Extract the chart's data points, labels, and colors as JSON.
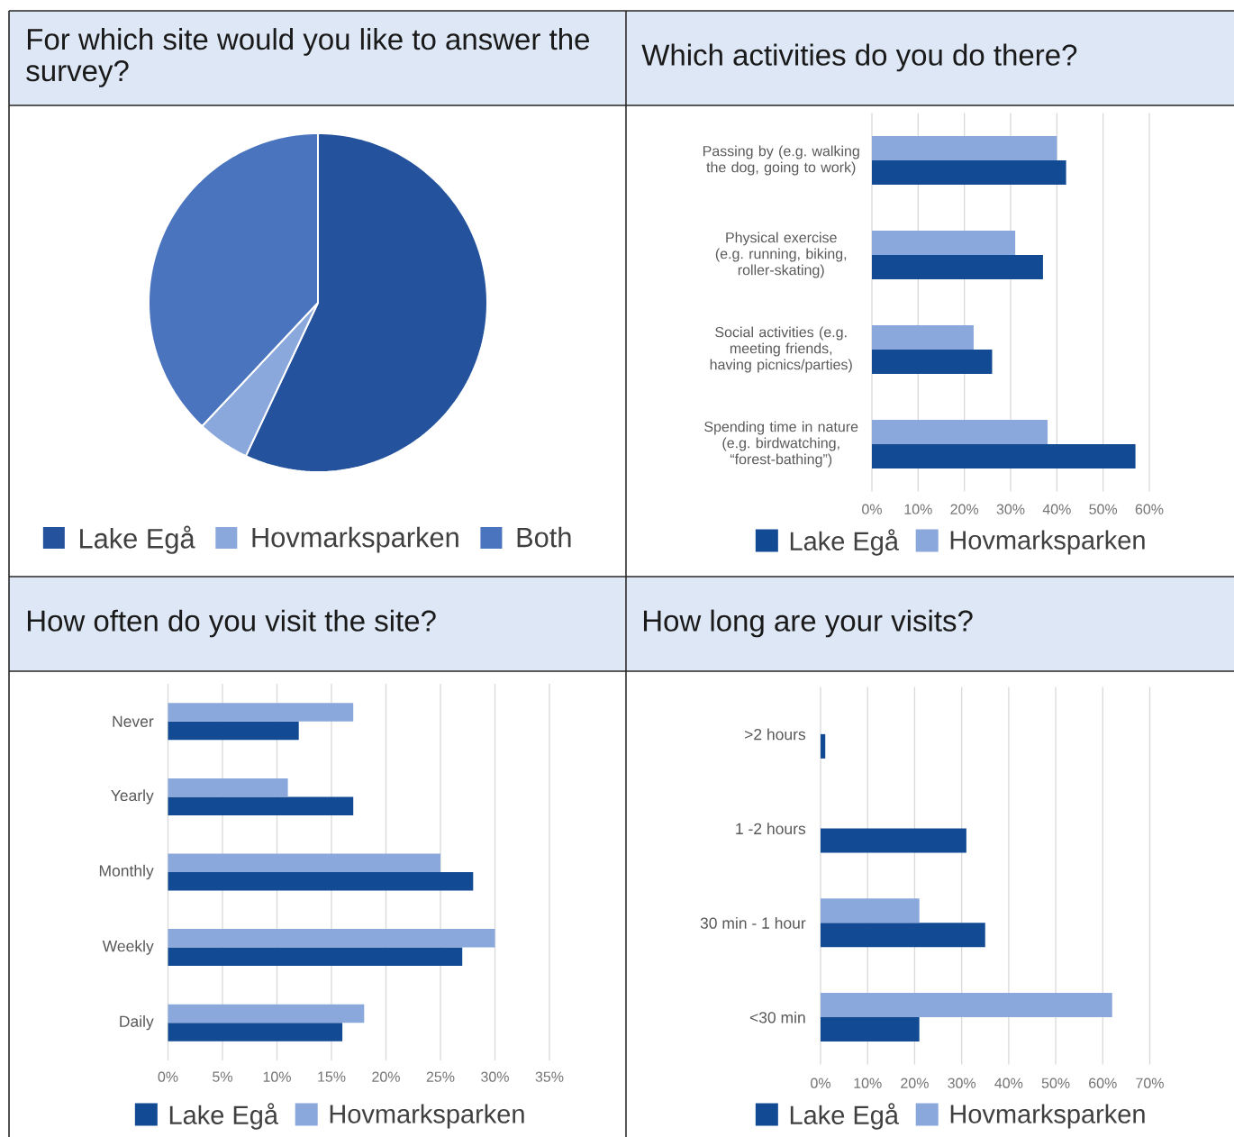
{
  "chart_data": [
    {
      "type": "pie",
      "title": "For which site would you like to answer the survey?",
      "categories": [
        "Lake Egå",
        "Hovmarksparken",
        "Both"
      ],
      "values": [
        57,
        5,
        38
      ],
      "colors": [
        "#24529c",
        "#8aa8dc",
        "#4a74bd"
      ],
      "legend": "bottom"
    },
    {
      "type": "bar",
      "title": "Which activities do you do there?",
      "orientation": "horizontal",
      "categories": [
        "Passing by (e.g. walking the dog, going to work)",
        "Physical exercise (e.g. running, biking, roller-skating)",
        "Social activities (e.g. meeting friends, having picnics/parties)",
        "Spending time in nature (e.g. birdwatching, “forest-bathing”)"
      ],
      "series": [
        {
          "name": "Lake Egå",
          "color": "#124b94",
          "values": [
            42,
            37,
            26,
            57
          ]
        },
        {
          "name": "Hovmarksparken",
          "color": "#8aa8dc",
          "values": [
            40,
            31,
            22,
            38
          ]
        }
      ],
      "xlim": [
        0,
        60
      ],
      "xticks": [
        {
          "value": 0,
          "label": "0%"
        },
        {
          "value": 10,
          "label": "10%"
        },
        {
          "value": 20,
          "label": "20%"
        },
        {
          "value": 30,
          "label": "30%"
        },
        {
          "value": 40,
          "label": "40%"
        },
        {
          "value": 50,
          "label": "50%"
        },
        {
          "value": 60,
          "label": "60%"
        }
      ],
      "grid": "x",
      "legend": "bottom"
    },
    {
      "type": "bar",
      "title": "How often do you visit the site?",
      "orientation": "horizontal",
      "categories": [
        "Never",
        "Yearly",
        "Monthly",
        "Weekly",
        "Daily"
      ],
      "series": [
        {
          "name": "Lake Egå",
          "color": "#124b94",
          "values": [
            12,
            17,
            28,
            27,
            16
          ]
        },
        {
          "name": "Hovmarksparken",
          "color": "#8aa8dc",
          "values": [
            17,
            11,
            25,
            30,
            18
          ]
        }
      ],
      "xlim": [
        0,
        35
      ],
      "xticks": [
        {
          "value": 0,
          "label": "0%"
        },
        {
          "value": 5,
          "label": "5%"
        },
        {
          "value": 10,
          "label": "10%"
        },
        {
          "value": 15,
          "label": "15%"
        },
        {
          "value": 20,
          "label": "20%"
        },
        {
          "value": 25,
          "label": "25%"
        },
        {
          "value": 30,
          "label": "30%"
        },
        {
          "value": 35,
          "label": "35%"
        }
      ],
      "grid": "x",
      "legend": "bottom"
    },
    {
      "type": "bar",
      "title": "How long are your visits?",
      "orientation": "horizontal",
      "categories": [
        ">2 hours",
        "1 -2 hours",
        "30 min - 1 hour",
        "<30 min"
      ],
      "series": [
        {
          "name": "Lake Egå",
          "color": "#124b94",
          "values": [
            1,
            31,
            35,
            21
          ]
        },
        {
          "name": "Hovmarksparken",
          "color": "#8aa8dc",
          "values": [
            0,
            0,
            21,
            62
          ]
        }
      ],
      "xlim": [
        0,
        70
      ],
      "xticks": [
        {
          "value": 0,
          "label": "0%"
        },
        {
          "value": 10,
          "label": "10%"
        },
        {
          "value": 20,
          "label": "20%"
        },
        {
          "value": 30,
          "label": "30%"
        },
        {
          "value": 40,
          "label": "40%"
        },
        {
          "value": 50,
          "label": "50%"
        },
        {
          "value": 60,
          "label": "60%"
        },
        {
          "value": 70,
          "label": "70%"
        }
      ],
      "grid": "x",
      "legend": "bottom"
    }
  ]
}
